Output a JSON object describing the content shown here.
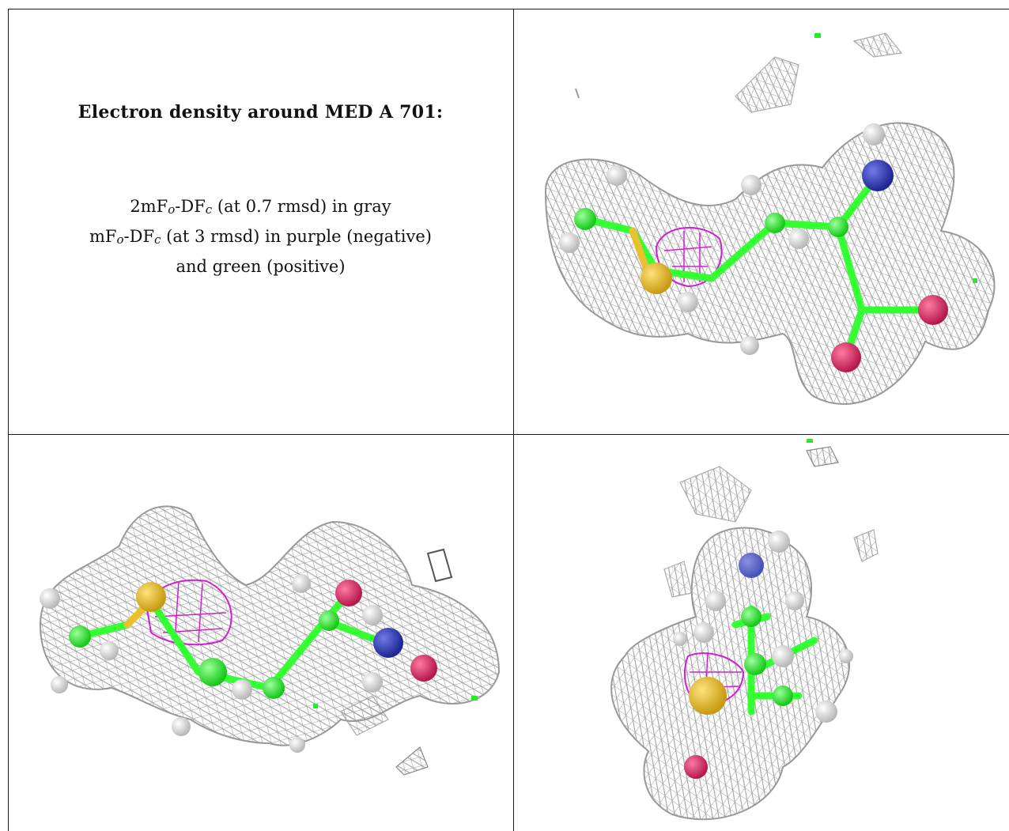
{
  "caption": {
    "title": "Electron density around MED A 701:",
    "line1_prefix": "2mF",
    "line1_sub_o": "o",
    "line1_mid": "-DF",
    "line1_sub_c": "c",
    "line1_suffix": " (at 0.7 rmsd) in gray",
    "line2_prefix": "mF",
    "line2_sub_o": "o",
    "line2_mid": "-DF",
    "line2_sub_c": "c",
    "line2_suffix": " (at 3 rmsd) in purple (negative)",
    "line3": "and green (positive)"
  },
  "colors": {
    "mesh_gray": "#9e9e9e",
    "mesh_purple": "#d21ed2",
    "carbon_green": "#33ff33",
    "sulfur_yellow": "#e8c030",
    "nitrogen_blue": "#2e3bb0",
    "oxygen_red": "#d93a6a",
    "hydrogen_white": "#e9e9e9",
    "positive_green": "#22ee22"
  },
  "panels": [
    {
      "view": "view-1",
      "icon": "molecule-density-view"
    },
    {
      "view": "view-2",
      "icon": "molecule-density-view"
    },
    {
      "view": "view-3",
      "icon": "molecule-density-view"
    }
  ]
}
